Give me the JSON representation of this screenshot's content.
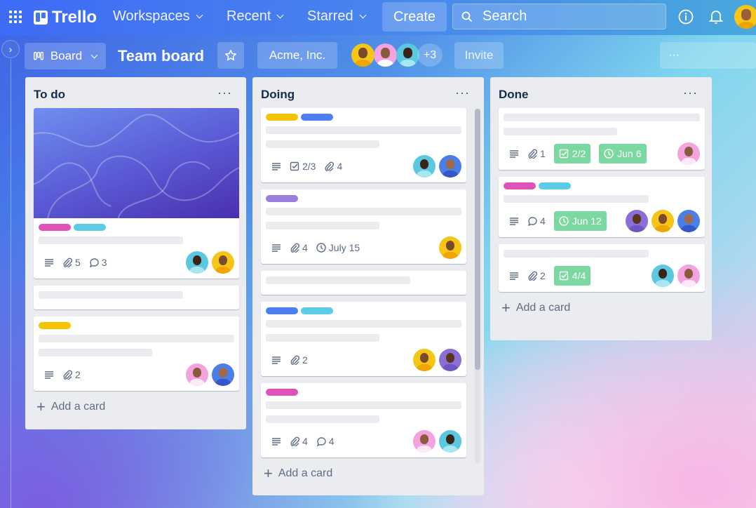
{
  "topbar": {
    "logo": "Trello",
    "nav": [
      "Workspaces",
      "Recent",
      "Starred"
    ],
    "create": "Create",
    "search_placeholder": "Search",
    "avatar_color": "#f5c518"
  },
  "board": {
    "view": "Board",
    "title": "Team board",
    "workspace": "Acme, Inc.",
    "members": [
      "#f5c518",
      "#f2a3e0",
      "#5bc8e0"
    ],
    "extra_members": "+3",
    "invite": "Invite",
    "more": "···"
  },
  "lists": [
    {
      "title": "To do",
      "add": "Add a card",
      "cards": [
        {
          "cover": true,
          "labels": [
            "#e052b8",
            "#5ccbe6"
          ],
          "lines": 1,
          "meta": [
            {
              "icon": "description-icon"
            },
            {
              "icon": "attachment-icon",
              "text": "5"
            },
            {
              "icon": "comment-icon",
              "text": "3"
            }
          ],
          "avatars": [
            "#5bc8e0",
            "#f5c518"
          ]
        },
        {
          "labels": [],
          "lines": 1,
          "meta": [],
          "avatars": []
        },
        {
          "labels": [
            "#f5c400"
          ],
          "lines": 2,
          "meta": [
            {
              "icon": "description-icon"
            },
            {
              "icon": "attachment-icon",
              "text": "2"
            }
          ],
          "avatars": [
            "#f2a3e0",
            "#4a7ee8"
          ]
        }
      ]
    },
    {
      "title": "Doing",
      "add": "Add a card",
      "cards": [
        {
          "labels": [
            "#f5c400",
            "#4c7ef0"
          ],
          "lines": 2,
          "meta": [
            {
              "icon": "description-icon"
            },
            {
              "icon": "checklist-icon",
              "text": "2/3"
            },
            {
              "icon": "attachment-icon",
              "text": "4"
            }
          ],
          "avatars": [
            "#5bc8e0",
            "#4a7ee8"
          ]
        },
        {
          "labels": [
            "#9a7fe0"
          ],
          "lines": 2,
          "meta": [
            {
              "icon": "description-icon"
            },
            {
              "icon": "attachment-icon",
              "text": "4"
            },
            {
              "icon": "clock-icon",
              "text": "July 15"
            }
          ],
          "avatars": [
            "#f5c518"
          ]
        },
        {
          "labels": [],
          "lines": 1,
          "meta": [],
          "avatars": []
        },
        {
          "labels": [
            "#4c7ef0",
            "#5ccbe6"
          ],
          "lines": 2,
          "meta": [
            {
              "icon": "description-icon"
            },
            {
              "icon": "attachment-icon",
              "text": "2"
            }
          ],
          "avatars": [
            "#f5c518",
            "#8a70d6"
          ]
        },
        {
          "labels": [
            "#e052b8"
          ],
          "lines": 2,
          "meta": [
            {
              "icon": "description-icon"
            },
            {
              "icon": "attachment-icon",
              "text": "4"
            },
            {
              "icon": "comment-icon",
              "text": "4"
            }
          ],
          "avatars": [
            "#f2a3e0",
            "#5bc8e0"
          ]
        }
      ]
    },
    {
      "title": "Done",
      "add": "Add a card",
      "cards": [
        {
          "labels": [],
          "lines": 2,
          "meta": [
            {
              "icon": "description-icon"
            },
            {
              "icon": "attachment-icon",
              "text": "1"
            },
            {
              "icon": "checklist-icon",
              "text": "2/2",
              "badge": true
            },
            {
              "icon": "clock-icon",
              "text": "Jun 6",
              "badge": true
            }
          ],
          "avatars": [
            "#f2a3e0"
          ]
        },
        {
          "labels": [
            "#e052b8",
            "#5ccbe6"
          ],
          "lines": 1,
          "meta": [
            {
              "icon": "description-icon"
            },
            {
              "icon": "comment-icon",
              "text": "4"
            },
            {
              "icon": "clock-icon",
              "text": "Jun 12",
              "badge": true
            }
          ],
          "avatars": [
            "#8a70d6",
            "#f5c518",
            "#4a7ee8"
          ]
        },
        {
          "labels": [],
          "lines": 1,
          "meta": [
            {
              "icon": "description-icon"
            },
            {
              "icon": "attachment-icon",
              "text": "2"
            },
            {
              "icon": "checklist-icon",
              "text": "4/4",
              "badge": true
            }
          ],
          "avatars": [
            "#5bc8e0",
            "#f2a3e0"
          ]
        }
      ]
    }
  ]
}
